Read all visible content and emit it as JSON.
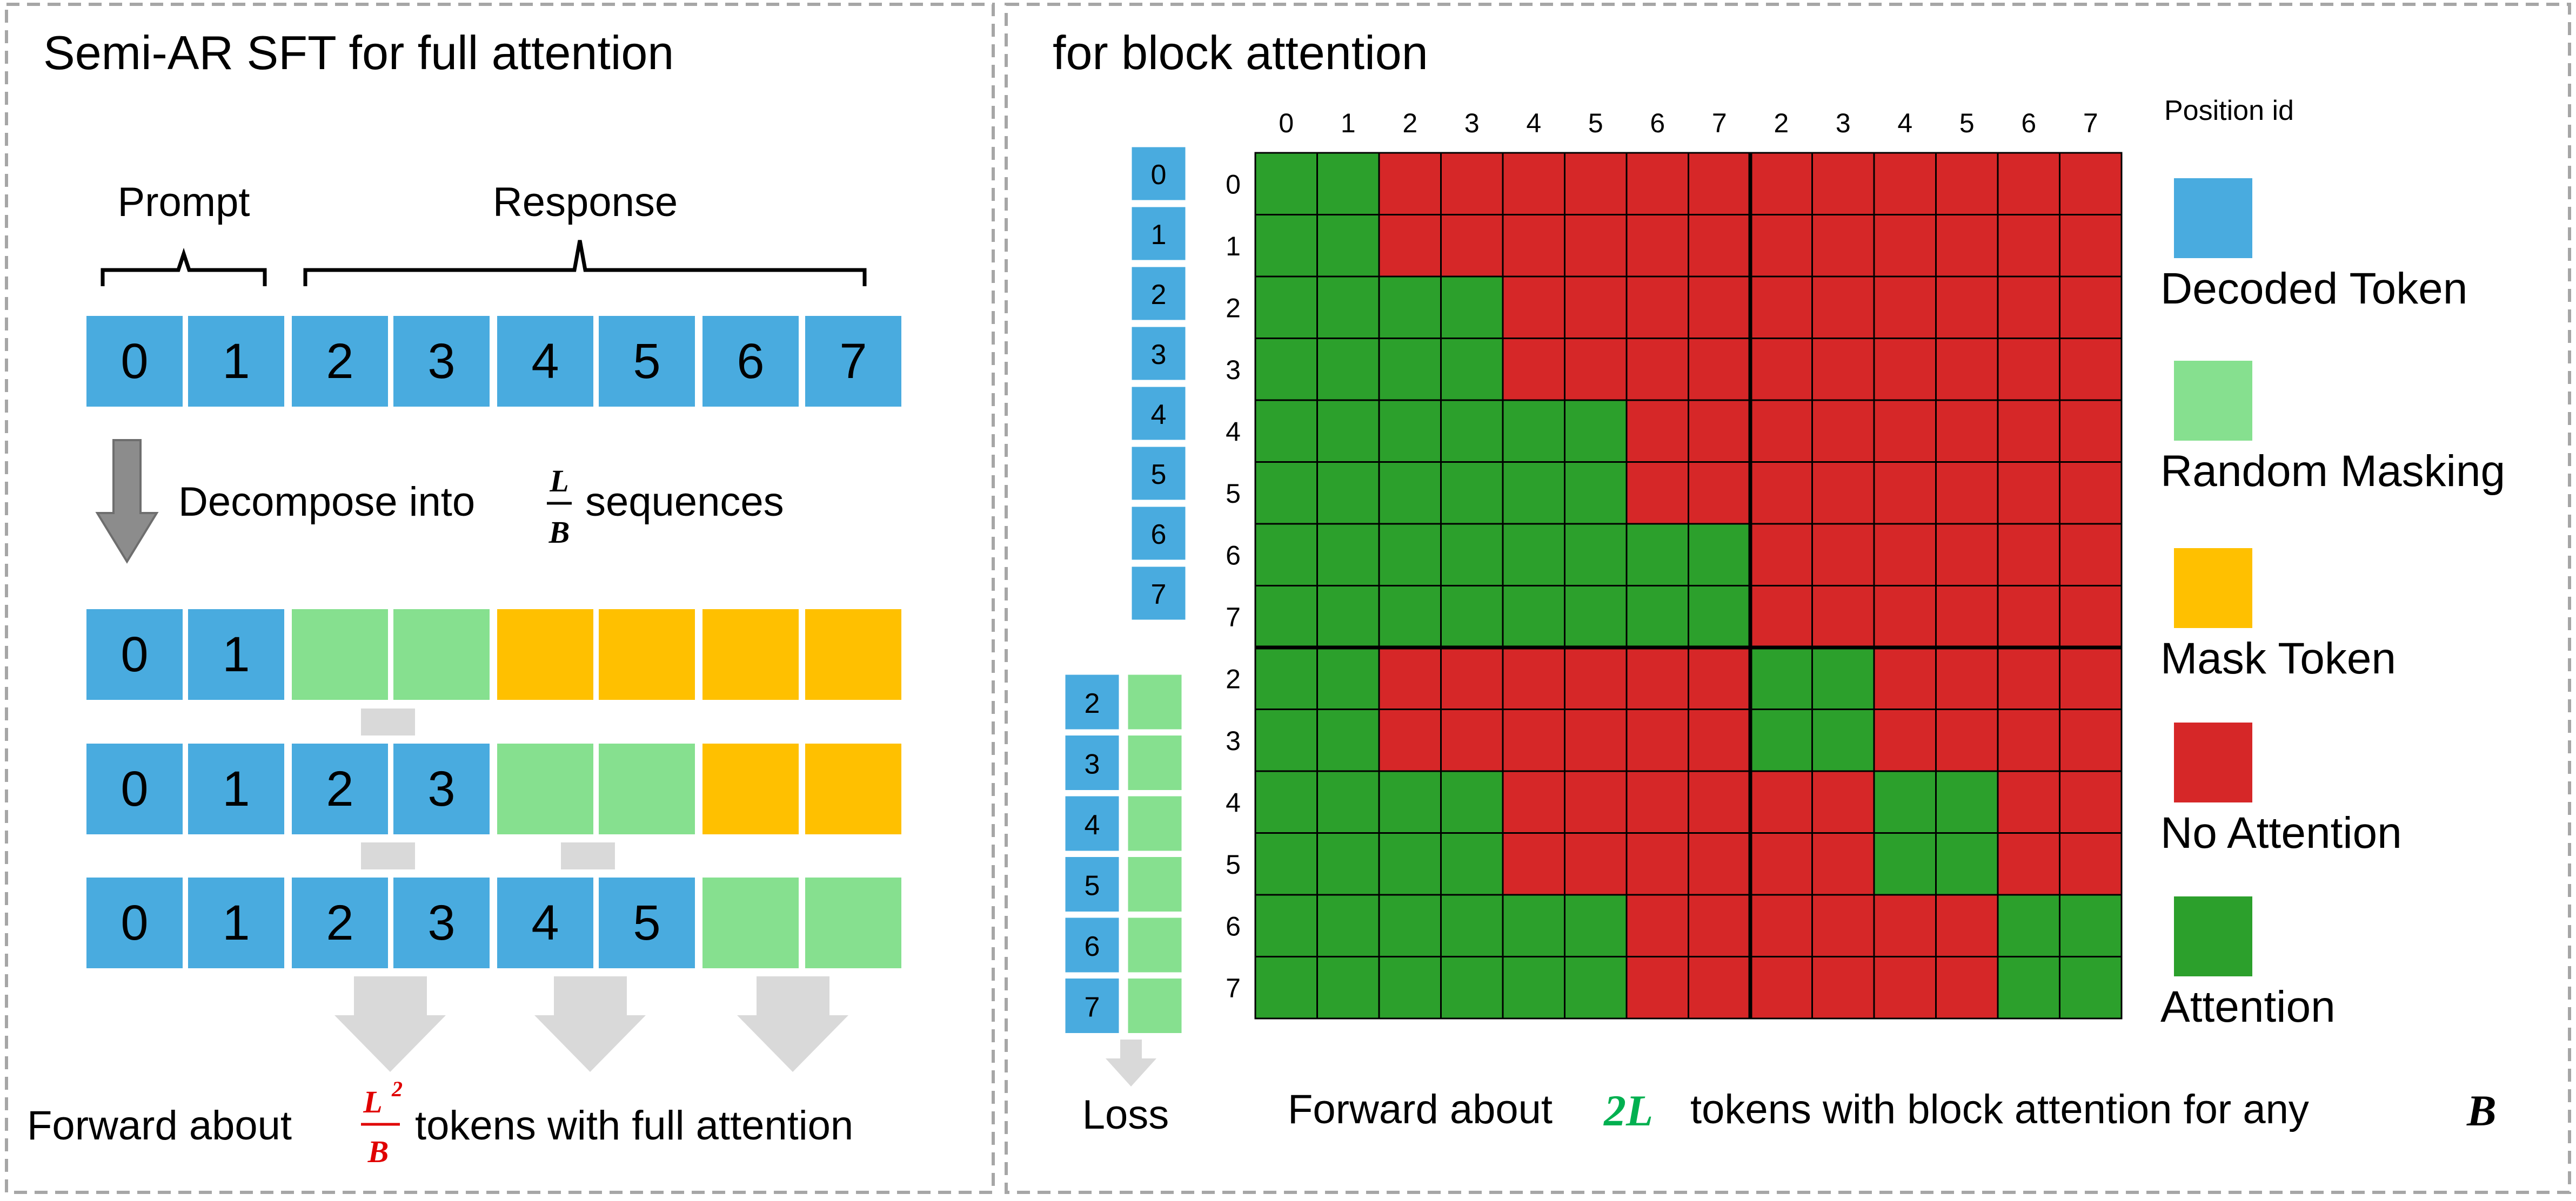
{
  "left_panel": {
    "title": "Semi-AR SFT for full attention",
    "prompt_label": "Prompt",
    "response_label": "Response",
    "full_sequence": [
      "0",
      "1",
      "2",
      "3",
      "4",
      "5",
      "6",
      "7"
    ],
    "decompose_prefix": "Decompose into",
    "decompose_frac_num": "L",
    "decompose_frac_den": "B",
    "decompose_suffix": "sequences",
    "rows": [
      [
        {
          "t": "0",
          "k": "decoded"
        },
        {
          "t": "1",
          "k": "decoded"
        },
        {
          "t": "",
          "k": "random"
        },
        {
          "t": "",
          "k": "random"
        },
        {
          "t": "",
          "k": "mask"
        },
        {
          "t": "",
          "k": "mask"
        },
        {
          "t": "",
          "k": "mask"
        },
        {
          "t": "",
          "k": "mask"
        }
      ],
      [
        {
          "t": "0",
          "k": "decoded"
        },
        {
          "t": "1",
          "k": "decoded"
        },
        {
          "t": "2",
          "k": "decoded"
        },
        {
          "t": "3",
          "k": "decoded"
        },
        {
          "t": "",
          "k": "random"
        },
        {
          "t": "",
          "k": "random"
        },
        {
          "t": "",
          "k": "mask"
        },
        {
          "t": "",
          "k": "mask"
        }
      ],
      [
        {
          "t": "0",
          "k": "decoded"
        },
        {
          "t": "1",
          "k": "decoded"
        },
        {
          "t": "2",
          "k": "decoded"
        },
        {
          "t": "3",
          "k": "decoded"
        },
        {
          "t": "4",
          "k": "decoded"
        },
        {
          "t": "5",
          "k": "decoded"
        },
        {
          "t": "",
          "k": "random"
        },
        {
          "t": "",
          "k": "random"
        }
      ]
    ],
    "forward_prefix": "Forward about",
    "forward_frac_num": "L",
    "forward_frac_exp": "2",
    "forward_frac_den": "B",
    "forward_suffix": "tokens with full attention"
  },
  "right_panel": {
    "title": "for block attention",
    "position_header": "Position id",
    "column_ids": [
      "0",
      "1",
      "2",
      "3",
      "4",
      "5",
      "6",
      "7",
      "2",
      "3",
      "4",
      "5",
      "6",
      "7"
    ],
    "row_ids": [
      "0",
      "1",
      "2",
      "3",
      "4",
      "5",
      "6",
      "7",
      "2",
      "3",
      "4",
      "5",
      "6",
      "7"
    ],
    "side_tokens_top": [
      "0",
      "1",
      "2",
      "3",
      "4",
      "5",
      "6",
      "7"
    ],
    "side_tokens_bottom": [
      "2",
      "3",
      "4",
      "5",
      "6",
      "7"
    ],
    "loss_label": "Loss",
    "attention_matrix": [
      [
        1,
        1,
        0,
        0,
        0,
        0,
        0,
        0,
        0,
        0,
        0,
        0,
        0,
        0
      ],
      [
        1,
        1,
        0,
        0,
        0,
        0,
        0,
        0,
        0,
        0,
        0,
        0,
        0,
        0
      ],
      [
        1,
        1,
        1,
        1,
        0,
        0,
        0,
        0,
        0,
        0,
        0,
        0,
        0,
        0
      ],
      [
        1,
        1,
        1,
        1,
        0,
        0,
        0,
        0,
        0,
        0,
        0,
        0,
        0,
        0
      ],
      [
        1,
        1,
        1,
        1,
        1,
        1,
        0,
        0,
        0,
        0,
        0,
        0,
        0,
        0
      ],
      [
        1,
        1,
        1,
        1,
        1,
        1,
        0,
        0,
        0,
        0,
        0,
        0,
        0,
        0
      ],
      [
        1,
        1,
        1,
        1,
        1,
        1,
        1,
        1,
        0,
        0,
        0,
        0,
        0,
        0
      ],
      [
        1,
        1,
        1,
        1,
        1,
        1,
        1,
        1,
        0,
        0,
        0,
        0,
        0,
        0
      ],
      [
        1,
        1,
        0,
        0,
        0,
        0,
        0,
        0,
        1,
        1,
        0,
        0,
        0,
        0
      ],
      [
        1,
        1,
        0,
        0,
        0,
        0,
        0,
        0,
        1,
        1,
        0,
        0,
        0,
        0
      ],
      [
        1,
        1,
        1,
        1,
        0,
        0,
        0,
        0,
        0,
        0,
        1,
        1,
        0,
        0
      ],
      [
        1,
        1,
        1,
        1,
        0,
        0,
        0,
        0,
        0,
        0,
        1,
        1,
        0,
        0
      ],
      [
        1,
        1,
        1,
        1,
        1,
        1,
        0,
        0,
        0,
        0,
        0,
        0,
        1,
        1
      ],
      [
        1,
        1,
        1,
        1,
        1,
        1,
        0,
        0,
        0,
        0,
        0,
        0,
        1,
        1
      ]
    ],
    "forward_prefix": "Forward about",
    "forward_math": "2L",
    "forward_middle": "tokens with block attention for any",
    "forward_b": "B"
  },
  "legend": [
    {
      "label": "Decoded Token",
      "color": "#49ABDF"
    },
    {
      "label": "Random Masking",
      "color": "#86E08F"
    },
    {
      "label": "Mask Token",
      "color": "#FFC000"
    },
    {
      "label": "No Attention",
      "color": "#D62728"
    },
    {
      "label": "Attention",
      "color": "#2CA02C"
    }
  ],
  "colors": {
    "decoded": "#49ABDF",
    "random": "#86E08F",
    "mask": "#FFC000",
    "no_attention": "#D62728",
    "attention": "#2CA02C",
    "arrow_dark": "#8C8C8C",
    "arrow_light": "#D9D9D9",
    "forward_2l": "#00B050",
    "frac_red": "#E00000"
  }
}
